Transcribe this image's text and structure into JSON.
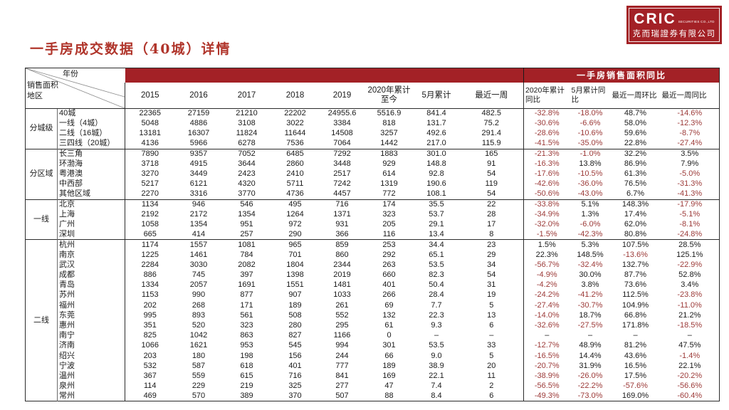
{
  "slide": {
    "title": "一手房成交数据（40城）详情"
  },
  "logo": {
    "brand": "CRIC",
    "brand_suffix": "SECURITIES CO.,LTD",
    "company_name": "克而瑞證券有限公司"
  },
  "colors": {
    "brand_red": "#a32126",
    "negative_value_red": "#9c3a38",
    "title_red": "#b0352b"
  },
  "table": {
    "corner": {
      "top_label": "年份",
      "left_label_line1": "销售面积",
      "left_label_line2": "地区"
    },
    "band_title": "一手房销售面积同比",
    "value_headers": [
      "2015",
      "2016",
      "2017",
      "2018",
      "2019",
      "2020年累计 至今",
      "5月累计",
      "最近一周"
    ],
    "pct_headers": [
      "2020年累计同比",
      "5月累计同比",
      "最近一周环比",
      "最近一周同比"
    ],
    "groups": [
      {
        "label": "分城级",
        "rows": [
          {
            "region": "40城",
            "values": [
              "22365",
              "27159",
              "21210",
              "22202",
              "24955.6",
              "5516.9",
              "841.4",
              "482.5"
            ],
            "pcts": [
              "-32.8%",
              "-18.0%",
              "48.7%",
              "-14.6%"
            ]
          },
          {
            "region": "一线（4城）",
            "values": [
              "5048",
              "4886",
              "3108",
              "3022",
              "3384",
              "818",
              "131.7",
              "75.2"
            ],
            "pcts": [
              "-30.6%",
              "-6.6%",
              "58.0%",
              "-12.3%"
            ]
          },
          {
            "region": "二线（16城）",
            "values": [
              "13181",
              "16307",
              "11824",
              "11644",
              "14508",
              "3257",
              "492.6",
              "291.4"
            ],
            "pcts": [
              "-28.6%",
              "-10.6%",
              "59.6%",
              "-8.7%"
            ]
          },
          {
            "region": "三四线（20城）",
            "values": [
              "4136",
              "5966",
              "6278",
              "7536",
              "7064",
              "1442",
              "217.0",
              "115.9"
            ],
            "pcts": [
              "-41.5%",
              "-35.0%",
              "22.8%",
              "-27.4%"
            ]
          }
        ]
      },
      {
        "label": "分区域",
        "rows": [
          {
            "region": "长三角",
            "values": [
              "7890",
              "9357",
              "7052",
              "6485",
              "7292",
              "1883",
              "301.0",
              "165"
            ],
            "pcts": [
              "-21.3%",
              "-1.0%",
              "32.2%",
              "3.5%"
            ]
          },
          {
            "region": "环渤海",
            "values": [
              "3718",
              "4915",
              "3644",
              "2860",
              "3448",
              "929",
              "148.8",
              "91"
            ],
            "pcts": [
              "-16.3%",
              "13.8%",
              "86.9%",
              "7.9%"
            ]
          },
          {
            "region": "粤港澳",
            "values": [
              "3270",
              "3449",
              "2423",
              "2410",
              "2517",
              "614",
              "92.8",
              "54"
            ],
            "pcts": [
              "-17.6%",
              "-10.5%",
              "61.3%",
              "-5.0%"
            ]
          },
          {
            "region": "中西部",
            "values": [
              "5217",
              "6121",
              "4320",
              "5711",
              "7242",
              "1319",
              "190.6",
              "119"
            ],
            "pcts": [
              "-42.6%",
              "-36.0%",
              "76.5%",
              "-31.3%"
            ]
          },
          {
            "region": "其他区域",
            "values": [
              "2270",
              "3316",
              "3770",
              "4736",
              "4457",
              "772",
              "108.1",
              "54"
            ],
            "pcts": [
              "-50.6%",
              "-43.0%",
              "6.7%",
              "-41.3%"
            ]
          }
        ]
      },
      {
        "label": "一线",
        "rows": [
          {
            "region": "北京",
            "values": [
              "1134",
              "946",
              "546",
              "495",
              "716",
              "174",
              "35.5",
              "22"
            ],
            "pcts": [
              "-33.8%",
              "5.1%",
              "148.3%",
              "-17.9%"
            ]
          },
          {
            "region": "上海",
            "values": [
              "2192",
              "2172",
              "1354",
              "1264",
              "1371",
              "323",
              "53.7",
              "28"
            ],
            "pcts": [
              "-34.9%",
              "1.3%",
              "17.4%",
              "-5.1%"
            ]
          },
          {
            "region": "广州",
            "values": [
              "1058",
              "1354",
              "951",
              "972",
              "931",
              "205",
              "29.1",
              "17"
            ],
            "pcts": [
              "-32.0%",
              "-6.0%",
              "62.0%",
              "-8.1%"
            ]
          },
          {
            "region": "深圳",
            "values": [
              "665",
              "414",
              "257",
              "290",
              "366",
              "116",
              "13.4",
              "8"
            ],
            "pcts": [
              "-1.5%",
              "-42.3%",
              "80.8%",
              "-24.8%"
            ]
          }
        ]
      },
      {
        "label": "二线",
        "rows": [
          {
            "region": "杭州",
            "values": [
              "1174",
              "1557",
              "1081",
              "965",
              "859",
              "253",
              "34.4",
              "23"
            ],
            "pcts": [
              "1.5%",
              "5.3%",
              "107.5%",
              "28.5%"
            ]
          },
          {
            "region": "南京",
            "values": [
              "1225",
              "1461",
              "784",
              "701",
              "860",
              "292",
              "65.1",
              "29"
            ],
            "pcts": [
              "22.3%",
              "148.5%",
              "-13.6%",
              "125.1%"
            ]
          },
          {
            "region": "武汉",
            "values": [
              "2284",
              "3030",
              "2082",
              "1804",
              "2344",
              "263",
              "53.5",
              "34"
            ],
            "pcts": [
              "-56.7%",
              "-32.4%",
              "132.7%",
              "-22.9%"
            ]
          },
          {
            "region": "成都",
            "values": [
              "886",
              "745",
              "397",
              "1398",
              "2019",
              "660",
              "82.3",
              "54"
            ],
            "pcts": [
              "-4.9%",
              "30.0%",
              "87.7%",
              "52.8%"
            ]
          },
          {
            "region": "青岛",
            "values": [
              "1334",
              "2057",
              "1691",
              "1551",
              "1481",
              "401",
              "50.4",
              "31"
            ],
            "pcts": [
              "-4.2%",
              "3.8%",
              "73.6%",
              "3.4%"
            ]
          },
          {
            "region": "苏州",
            "values": [
              "1153",
              "990",
              "877",
              "907",
              "1033",
              "266",
              "28.4",
              "19"
            ],
            "pcts": [
              "-24.2%",
              "-41.2%",
              "112.5%",
              "-23.8%"
            ]
          },
          {
            "region": "福州",
            "values": [
              "202",
              "268",
              "171",
              "189",
              "261",
              "69",
              "7.7",
              "5"
            ],
            "pcts": [
              "-27.4%",
              "-30.7%",
              "104.9%",
              "-11.0%"
            ]
          },
          {
            "region": "东莞",
            "values": [
              "995",
              "893",
              "561",
              "508",
              "552",
              "132",
              "22.3",
              "13"
            ],
            "pcts": [
              "-14.0%",
              "18.7%",
              "66.8%",
              "21.2%"
            ]
          },
          {
            "region": "惠州",
            "values": [
              "351",
              "520",
              "323",
              "280",
              "295",
              "61",
              "9.3",
              "6"
            ],
            "pcts": [
              "-32.6%",
              "-27.5%",
              "171.8%",
              "-18.5%"
            ]
          },
          {
            "region": "南宁",
            "values": [
              "825",
              "1042",
              "863",
              "827",
              "1166",
              "0",
              "–",
              "–"
            ],
            "pcts": [
              "–",
              "–",
              "–",
              "–"
            ]
          },
          {
            "region": "济南",
            "values": [
              "1066",
              "1621",
              "953",
              "545",
              "994",
              "301",
              "53.5",
              "33"
            ],
            "pcts": [
              "-12.7%",
              "48.9%",
              "81.2%",
              "47.5%"
            ]
          },
          {
            "region": "绍兴",
            "values": [
              "203",
              "180",
              "198",
              "156",
              "244",
              "66",
              "9.0",
              "5"
            ],
            "pcts": [
              "-16.5%",
              "14.4%",
              "43.6%",
              "-1.4%"
            ]
          },
          {
            "region": "宁波",
            "values": [
              "532",
              "587",
              "618",
              "401",
              "777",
              "189",
              "38.9",
              "20"
            ],
            "pcts": [
              "-20.7%",
              "31.9%",
              "16.5%",
              "22.1%"
            ]
          },
          {
            "region": "温州",
            "values": [
              "367",
              "559",
              "615",
              "716",
              "841",
              "169",
              "22.1",
              "11"
            ],
            "pcts": [
              "-38.9%",
              "-26.0%",
              "17.5%",
              "-20.2%"
            ]
          },
          {
            "region": "泉州",
            "values": [
              "114",
              "229",
              "219",
              "325",
              "277",
              "47",
              "7.4",
              "2"
            ],
            "pcts": [
              "-56.5%",
              "-22.2%",
              "-57.6%",
              "-56.6%"
            ]
          },
          {
            "region": "常州",
            "values": [
              "469",
              "570",
              "389",
              "370",
              "507",
              "88",
              "8.4",
              "6"
            ],
            "pcts": [
              "-49.3%",
              "-73.0%",
              "169.0%",
              "-60.4%"
            ]
          }
        ]
      }
    ]
  }
}
